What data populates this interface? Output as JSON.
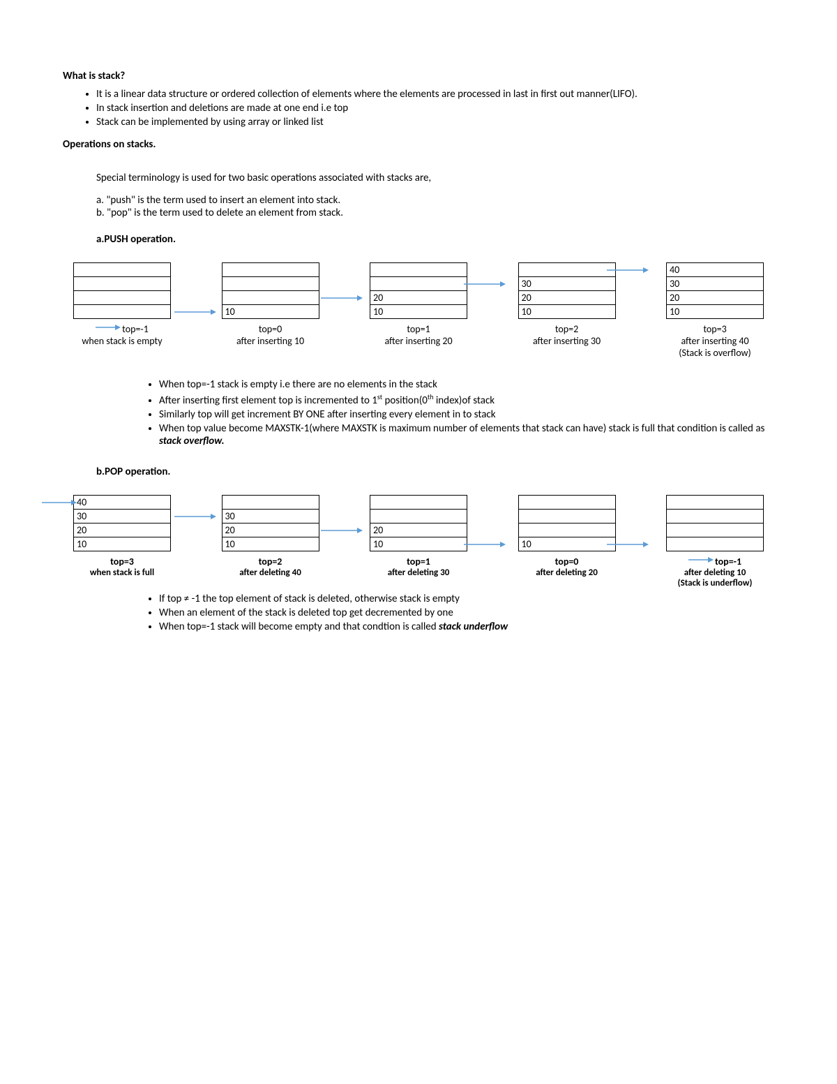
{
  "colors": {
    "arrow": "#5b9bd5",
    "text": "#000000",
    "border": "#000000",
    "background": "#ffffff"
  },
  "heading1": "What is stack?",
  "intro_bullets": [
    "It is a linear data structure or ordered collection of elements where the elements are processed in last in first out manner(LIFO).",
    "In stack insertion and deletions are made at one end i.e top",
    "Stack can be implemented by using array or linked list"
  ],
  "heading2": "Operations on stacks.",
  "ops_intro": "Special terminology is used for two basic operations associated with stacks are,",
  "ops_a": "a. \"push\" is the term used to insert an element into stack.",
  "ops_b": "b. \"pop\" is the term used to delete an element from stack.",
  "push_heading": "a.PUSH operation.",
  "push_stacks": [
    {
      "cells": [
        "",
        "",
        "",
        ""
      ],
      "top": "top=-1",
      "caption": "when stack is empty",
      "extra": ""
    },
    {
      "cells": [
        "",
        "",
        "",
        "10"
      ],
      "top": "top=0",
      "caption": "after inserting 10",
      "extra": ""
    },
    {
      "cells": [
        "",
        "",
        "20",
        "10"
      ],
      "top": "top=1",
      "caption": "after inserting 20",
      "extra": ""
    },
    {
      "cells": [
        "",
        "30",
        "20",
        "10"
      ],
      "top": "top=2",
      "caption": "after inserting 30",
      "extra": ""
    },
    {
      "cells": [
        "40",
        "30",
        "20",
        "10"
      ],
      "top": "top=3",
      "caption": "after inserting 40",
      "extra": "(Stack is overflow)"
    }
  ],
  "push_notes": {
    "b1": "When top=-1 stack is empty i.e there are no elements in the stack",
    "b2a": "After inserting first element top is incremented to 1",
    "b2b": " position(0",
    "b2c": " index)of stack",
    "sup_st": "st",
    "sup_th": "th",
    "b3": "Similarly top will get increment BY ONE after inserting every element in to stack",
    "b4a": "When top value become MAXSTK-1(where MAXSTK is maximum number of elements that stack can have) stack is full that condition is called as ",
    "b4b": "stack overflow."
  },
  "pop_heading": "b.POP operation.",
  "pop_stacks": [
    {
      "cells": [
        "40",
        "30",
        "20",
        "10"
      ],
      "top": "top=3",
      "caption": "when stack is full",
      "extra": ""
    },
    {
      "cells": [
        "",
        "30",
        "20",
        "10"
      ],
      "top": "top=2",
      "caption": "after deleting 40",
      "extra": ""
    },
    {
      "cells": [
        "",
        "",
        "20",
        "10"
      ],
      "top": "top=1",
      "caption": "after deleting 30",
      "extra": ""
    },
    {
      "cells": [
        "",
        "",
        "",
        "10"
      ],
      "top": "top=0",
      "caption": "after deleting 20",
      "extra": ""
    },
    {
      "cells": [
        "",
        "",
        "",
        ""
      ],
      "top": "top=-1",
      "caption": "after deleting 10",
      "extra": "(Stack is underflow)"
    }
  ],
  "pop_notes": {
    "b1": "If top ≠ -1 the top element of stack is deleted, otherwise stack is empty",
    "b2": "When an element of the stack is deleted top get decremented by one",
    "b3a": "When top=-1 stack will become empty and that condtion is called ",
    "b3b": "stack underflow"
  },
  "arrow_svg": {
    "width": 60,
    "height": 14,
    "stroke_width": 1.5
  }
}
